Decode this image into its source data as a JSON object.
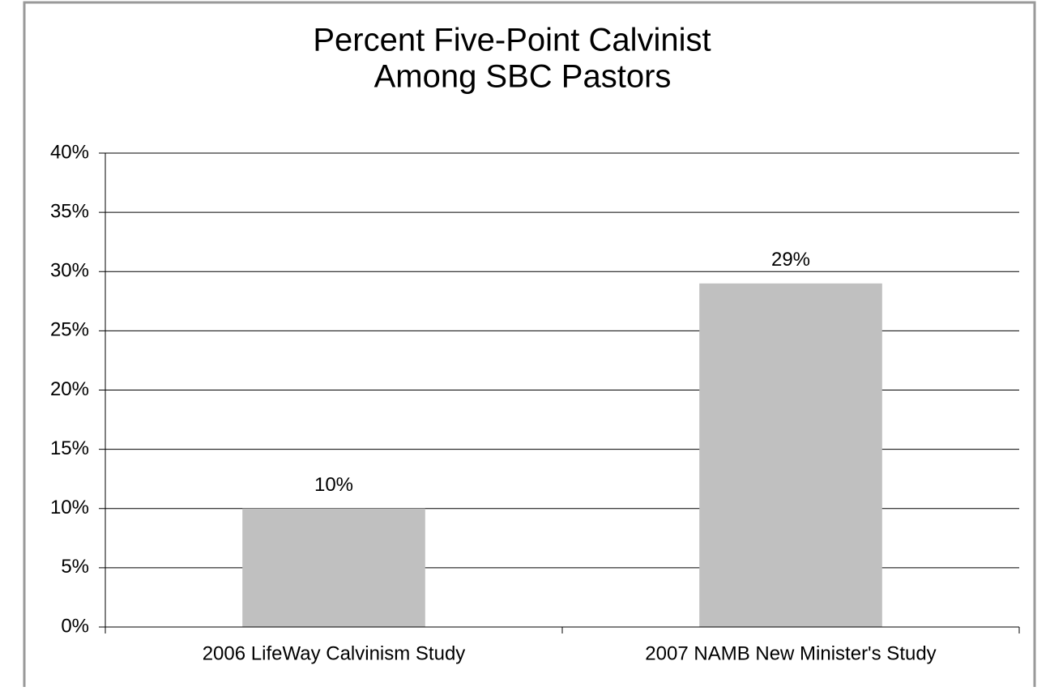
{
  "chart_data": {
    "type": "bar",
    "title": [
      "Percent Five-Point Calvinist",
      "Among SBC Pastors"
    ],
    "categories": [
      "2006 LifeWay Calvinism Study",
      "2007 NAMB New Minister's Study"
    ],
    "values": [
      10,
      29
    ],
    "value_labels": [
      "10%",
      "29%"
    ],
    "color": "#c0c0c0",
    "ylim": [
      0,
      40
    ],
    "yticks": [
      {
        "value": 0,
        "label": "0%"
      },
      {
        "value": 5,
        "label": "5%"
      },
      {
        "value": 10,
        "label": "10%"
      },
      {
        "value": 15,
        "label": "15%"
      },
      {
        "value": 20,
        "label": "20%"
      },
      {
        "value": 25,
        "label": "25%"
      },
      {
        "value": 30,
        "label": "30%"
      },
      {
        "value": 35,
        "label": "35%"
      },
      {
        "value": 40,
        "label": "40%"
      }
    ],
    "grid": true
  }
}
